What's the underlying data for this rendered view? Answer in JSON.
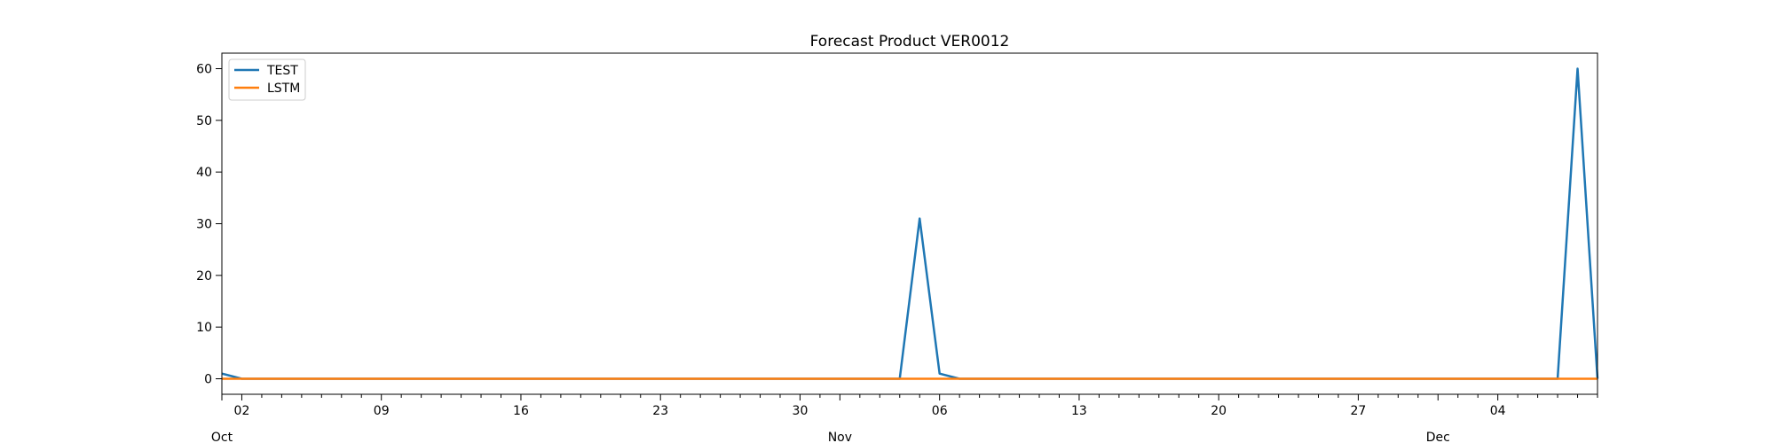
{
  "chart_data": {
    "type": "line",
    "title": "Forecast Product VER0012",
    "xlabel": "",
    "ylabel": "",
    "x_start": "2023-10-01",
    "x_end": "2023-12-09",
    "ylim": [
      -3,
      63
    ],
    "y_ticks": [
      0,
      10,
      20,
      30,
      40,
      50,
      60
    ],
    "x_major_ticks": [
      {
        "date": "2023-10-02",
        "label": "02"
      },
      {
        "date": "2023-10-09",
        "label": "09"
      },
      {
        "date": "2023-10-16",
        "label": "16"
      },
      {
        "date": "2023-10-23",
        "label": "23"
      },
      {
        "date": "2023-10-30",
        "label": "30"
      },
      {
        "date": "2023-11-06",
        "label": "06"
      },
      {
        "date": "2023-11-13",
        "label": "13"
      },
      {
        "date": "2023-11-20",
        "label": "20"
      },
      {
        "date": "2023-11-27",
        "label": "27"
      },
      {
        "date": "2023-12-04",
        "label": "04"
      }
    ],
    "x_month_labels": [
      {
        "date": "2023-10-01",
        "label": "Oct"
      },
      {
        "date": "2023-11-01",
        "label": "Nov"
      },
      {
        "date": "2023-12-01",
        "label": "Dec"
      }
    ],
    "grid": false,
    "legend": "upper-left",
    "series": [
      {
        "name": "TEST",
        "color": "#1f77b4",
        "points": [
          {
            "x": "2023-10-01",
            "y": 1
          },
          {
            "x": "2023-10-02",
            "y": 0
          },
          {
            "x": "2023-11-04",
            "y": 0
          },
          {
            "x": "2023-11-05",
            "y": 31
          },
          {
            "x": "2023-11-06",
            "y": 1
          },
          {
            "x": "2023-11-07",
            "y": 0
          },
          {
            "x": "2023-12-07",
            "y": 0
          },
          {
            "x": "2023-12-08",
            "y": 60
          },
          {
            "x": "2023-12-09",
            "y": 0
          }
        ]
      },
      {
        "name": "LSTM",
        "color": "#ff7f0e",
        "points": [
          {
            "x": "2023-10-01",
            "y": 0
          },
          {
            "x": "2023-12-09",
            "y": 0
          }
        ]
      }
    ]
  }
}
